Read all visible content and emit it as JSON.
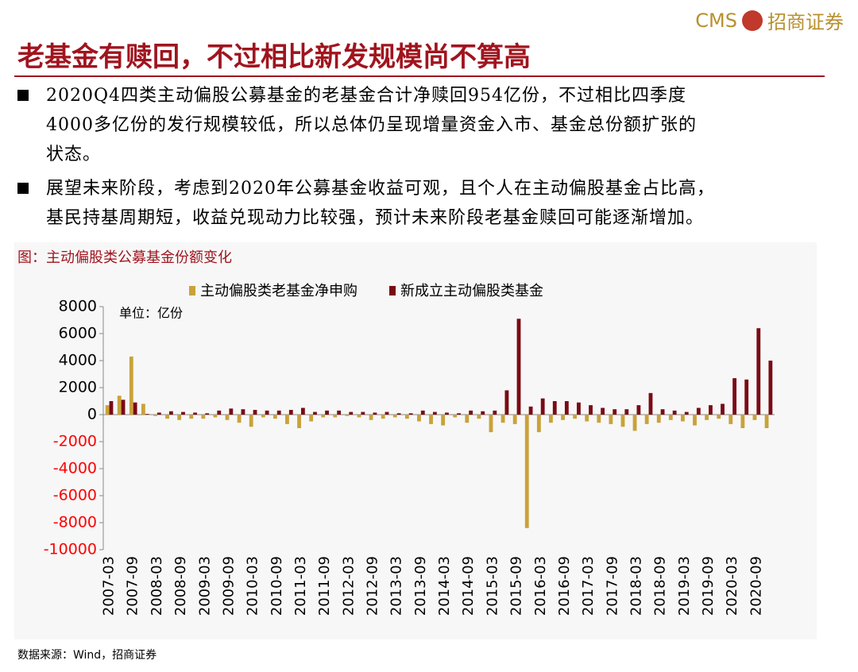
{
  "header": {
    "logo_text": "CMS",
    "brand": "招商证券"
  },
  "title": "老基金有赎回，不过相比新发规模尚不算高",
  "bullets": [
    {
      "lines": [
        "2020Q4四类主动偏股公募基金的老基金合计净赎回954亿份，不过相比四季度",
        "4000多亿份的发行规模较低，所以总体仍呈现增量资金入市、基金总份额扩张的",
        "状态。"
      ]
    },
    {
      "lines": [
        "展望未来阶段，考虑到2020年公募基金收益可观，且个人在主动偏股基金占比高，",
        "基民持基周期短，收益兑现动力比较强，预计未来阶段老基金赎回可能逐渐增加。"
      ]
    }
  ],
  "chart_data": {
    "type": "bar",
    "title": "图：主动偏股类公募基金份额变化",
    "unit_label": "单位：亿份",
    "categories": [
      "2007-03",
      null,
      "2007-09",
      null,
      "2008-03",
      null,
      "2008-09",
      null,
      "2009-03",
      null,
      "2009-09",
      null,
      "2010-03",
      null,
      "2010-09",
      null,
      "2011-03",
      null,
      "2011-09",
      null,
      "2012-03",
      null,
      "2012-09",
      null,
      "2013-03",
      null,
      "2013-09",
      null,
      "2014-03",
      null,
      "2014-09",
      null,
      "2015-03",
      null,
      "2015-09",
      null,
      "2016-03",
      null,
      "2016-09",
      null,
      "2017-03",
      null,
      "2017-09",
      null,
      "2018-03",
      null,
      "2018-09",
      null,
      "2019-03",
      null,
      "2019-09",
      null,
      "2020-03",
      null,
      "2020-09",
      null
    ],
    "series": [
      {
        "name": "主动偏股类老基金净申购",
        "color": "#c9a23a",
        "values": [
          700,
          1400,
          4300,
          800,
          -100,
          -300,
          -400,
          -300,
          -300,
          -200,
          -400,
          -600,
          -900,
          -200,
          -300,
          -700,
          -1000,
          -500,
          -200,
          -200,
          -100,
          -200,
          -400,
          -300,
          -200,
          -300,
          -500,
          -700,
          -800,
          -200,
          -600,
          -300,
          -1300,
          -600,
          -700,
          -8400,
          -1300,
          -600,
          -400,
          -300,
          -500,
          -600,
          -700,
          -900,
          -1200,
          -700,
          -600,
          -400,
          -500,
          -800,
          -400,
          -300,
          -700,
          -1000,
          -400,
          -1000
        ]
      },
      {
        "name": "新成立主动偏股类基金",
        "color": "#7a0a14",
        "values": [
          1000,
          1100,
          900,
          50,
          150,
          250,
          200,
          150,
          100,
          300,
          450,
          400,
          350,
          300,
          300,
          350,
          500,
          200,
          300,
          300,
          200,
          200,
          150,
          200,
          100,
          100,
          300,
          200,
          150,
          100,
          300,
          250,
          300,
          1800,
          7100,
          600,
          1200,
          1000,
          1000,
          900,
          700,
          500,
          400,
          400,
          700,
          1600,
          400,
          300,
          200,
          500,
          700,
          800,
          2700,
          2600,
          6400,
          4000
        ]
      }
    ],
    "ylim": [
      -10000,
      8000
    ],
    "yticks": [
      8000,
      6000,
      4000,
      2000,
      0,
      -2000,
      -4000,
      -6000,
      -8000,
      -10000
    ],
    "negative_tick_color": "#ff0000",
    "legend": "top"
  },
  "source": "数据来源：Wind，招商证券"
}
